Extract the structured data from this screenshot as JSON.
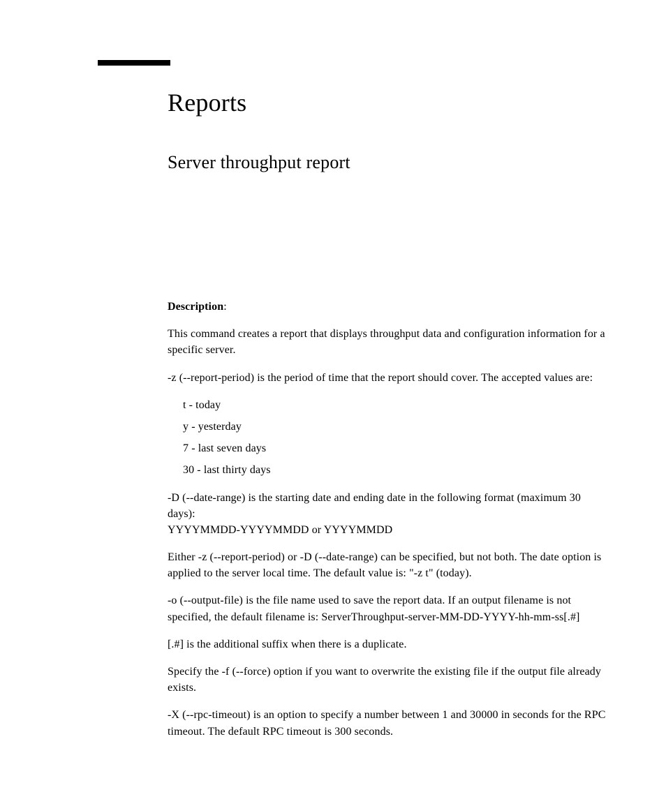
{
  "title": "Reports",
  "subtitle": "Server throughput report",
  "description_label": "Description",
  "p_intro": "This command creates a report that displays throughput data and configuration information for a specific server.",
  "p_z": "-z (--report-period) is the period of time that the report should cover. The accepted values are:",
  "values": {
    "v1": "t - today",
    "v2": "y - yesterday",
    "v3": "7 - last seven days",
    "v4": "30 - last thirty days"
  },
  "p_D1": "-D (--date-range) is the starting date and ending date in the following format (maximum 30 days):",
  "p_D2": "YYYYMMDD-YYYYMMDD or YYYYMMDD",
  "p_either": "Either -z (--report-period) or -D (--date-range) can be specified, but not both. The date option is applied to the server local time. The default value is: \"-z t\" (today).",
  "p_o": "-o (--output-file) is the file name used to save the report data. If an output filename is not specified, the default filename is: ServerThroughput-server-MM-DD-YYYY-hh-mm-ss[.#]",
  "p_suffix": "[.#] is the additional suffix when there is a duplicate.",
  "p_force": "Specify the -f (--force) option if you want to overwrite the existing file if the output file already exists.",
  "p_X": "-X (--rpc-timeout) is an option to specify a number between 1 and 30000 in seconds for the RPC timeout. The default RPC timeout is 300 seconds."
}
